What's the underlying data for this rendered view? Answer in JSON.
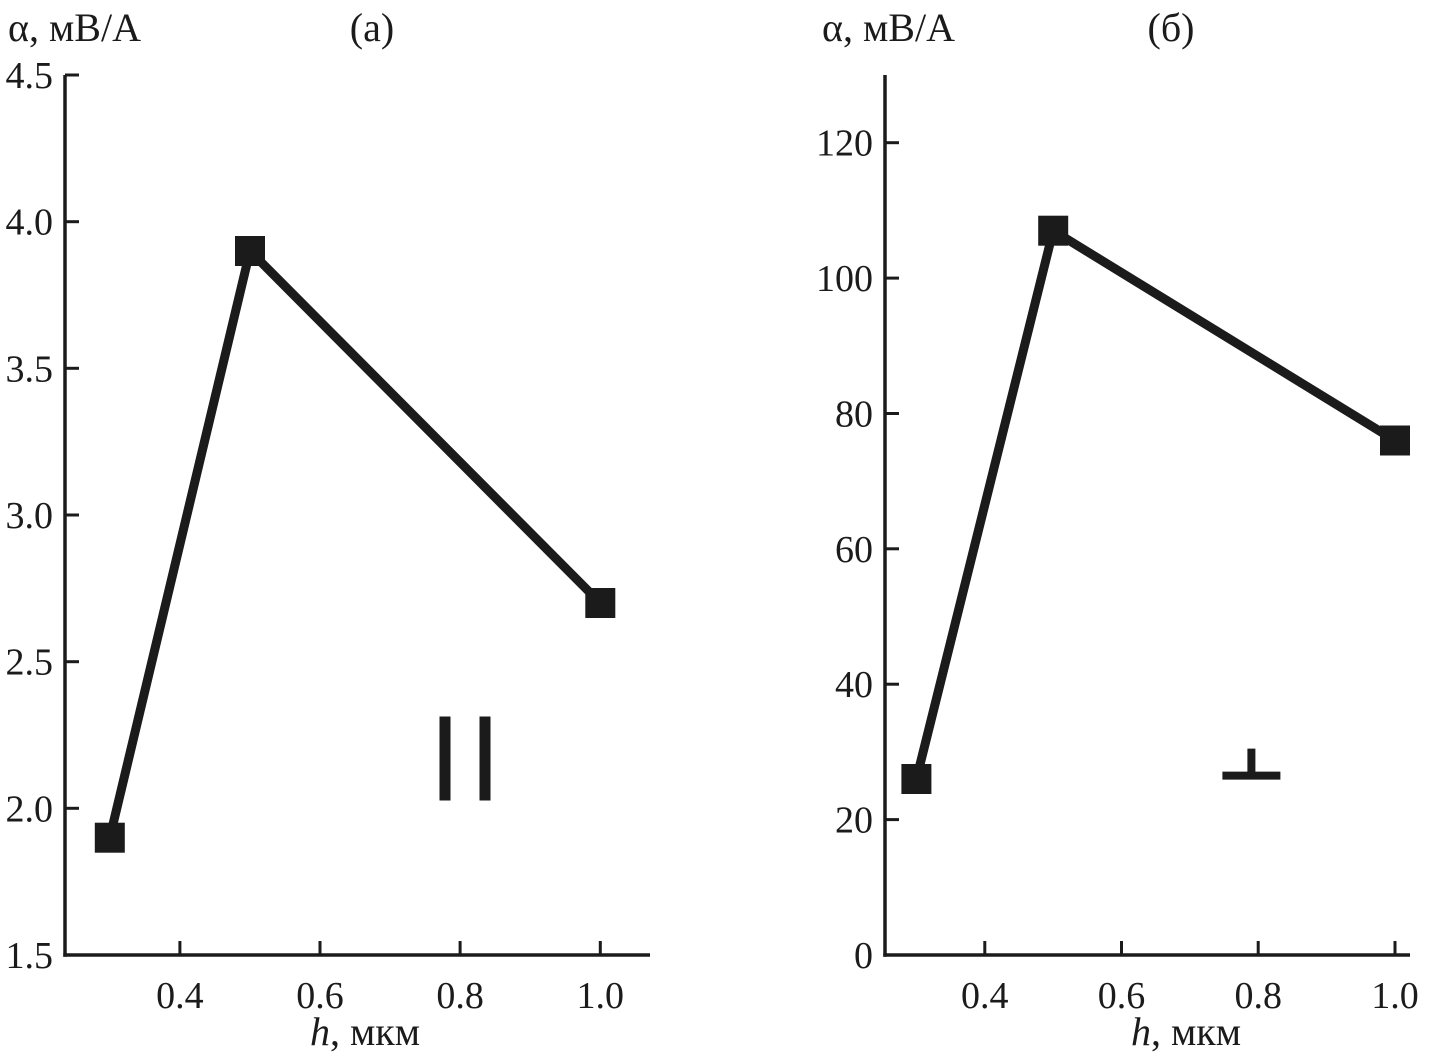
{
  "figure": {
    "background": "#ffffff",
    "ink_color": "#1b1b1b"
  },
  "chart_data": [
    {
      "type": "line",
      "panel_label": "(а)",
      "ylabel": "α, мВ/А",
      "xlabel_var": "h",
      "xlabel_rest": ", мкм",
      "x": [
        0.3,
        0.5,
        1.0
      ],
      "values": [
        1.9,
        3.9,
        2.7
      ],
      "marker": "square",
      "xlim": [
        0.236,
        1.071
      ],
      "ylim": [
        1.5,
        4.5
      ],
      "xticks": [
        0.4,
        0.6,
        0.8,
        1.0
      ],
      "xtick_labels": [
        "0.4",
        "0.6",
        "0.8",
        "1.0"
      ],
      "yticks": [
        1.5,
        2.0,
        2.5,
        3.0,
        3.5,
        4.0,
        4.5
      ],
      "ytick_labels": [
        "1.5",
        "2.0",
        "2.5",
        "3.0",
        "3.5",
        "4.0",
        "4.5"
      ],
      "grid": false,
      "legend": "none",
      "annotation": {
        "symbol": "parallel",
        "glyph": "∥",
        "x": 0.807,
        "y": 2.17
      }
    },
    {
      "type": "line",
      "panel_label": "(б)",
      "ylabel": "α, мВ/А",
      "xlabel_var": "h",
      "xlabel_rest": ", мкм",
      "x": [
        0.3,
        0.5,
        1.0
      ],
      "values": [
        26,
        107,
        76
      ],
      "marker": "square",
      "xlim": [
        0.254,
        1.022
      ],
      "ylim": [
        0,
        130
      ],
      "xticks": [
        0.4,
        0.6,
        0.8,
        1.0
      ],
      "xtick_labels": [
        "0.4",
        "0.6",
        "0.8",
        "1.0"
      ],
      "yticks": [
        0,
        20,
        40,
        60,
        80,
        100,
        120
      ],
      "ytick_labels": [
        "0",
        "20",
        "40",
        "60",
        "80",
        "100",
        "120"
      ],
      "grid": false,
      "legend": "none",
      "annotation": {
        "symbol": "perpendicular",
        "glyph": "⊥",
        "x": 0.79,
        "y": 26.5
      }
    }
  ]
}
